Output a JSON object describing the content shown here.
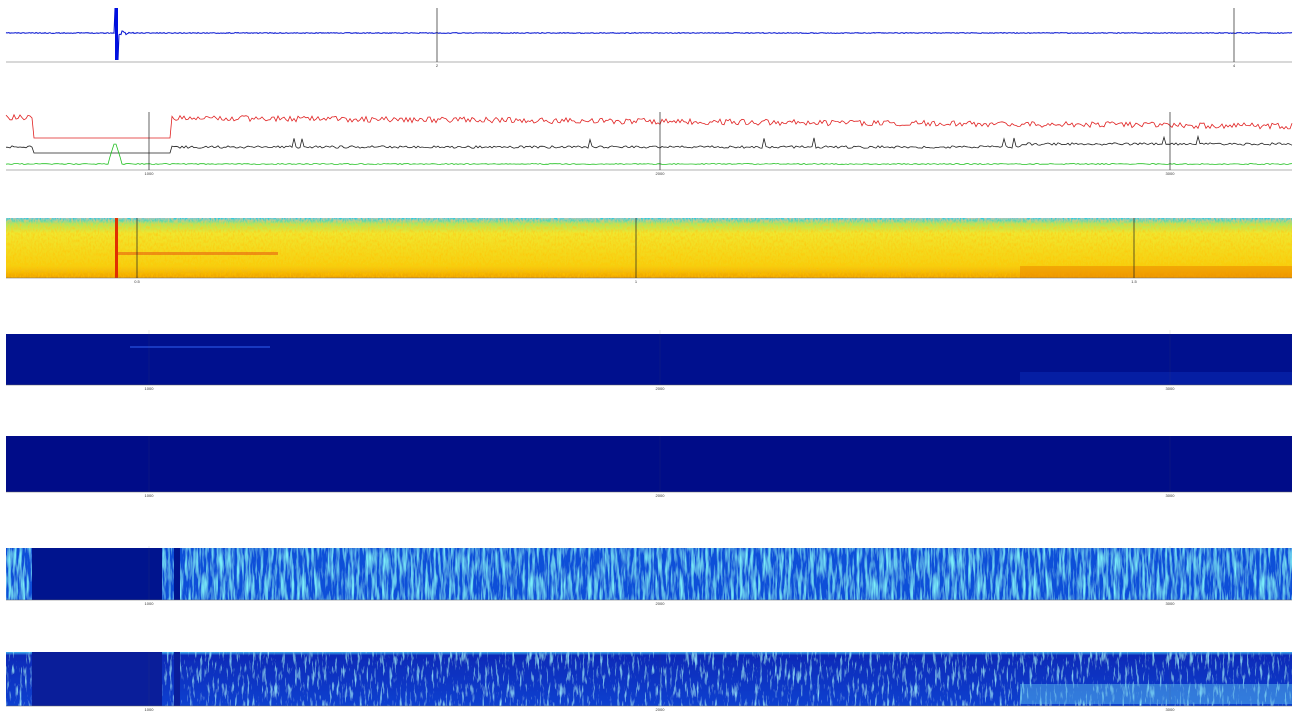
{
  "panels": [
    {
      "ticks": [
        "2",
        "4"
      ]
    },
    {
      "ticks": [
        "1000",
        "2000",
        "3000"
      ]
    },
    {
      "ticks": [
        "0.5",
        "1",
        "1.5"
      ]
    },
    {
      "ticks": [
        "1000",
        "2000",
        "3000"
      ]
    },
    {
      "ticks": [
        "1000",
        "2000",
        "3000"
      ]
    },
    {
      "ticks": [
        "1000",
        "2000",
        "3000"
      ]
    },
    {
      "ticks": [
        "1000",
        "2000",
        "3000"
      ]
    }
  ]
}
